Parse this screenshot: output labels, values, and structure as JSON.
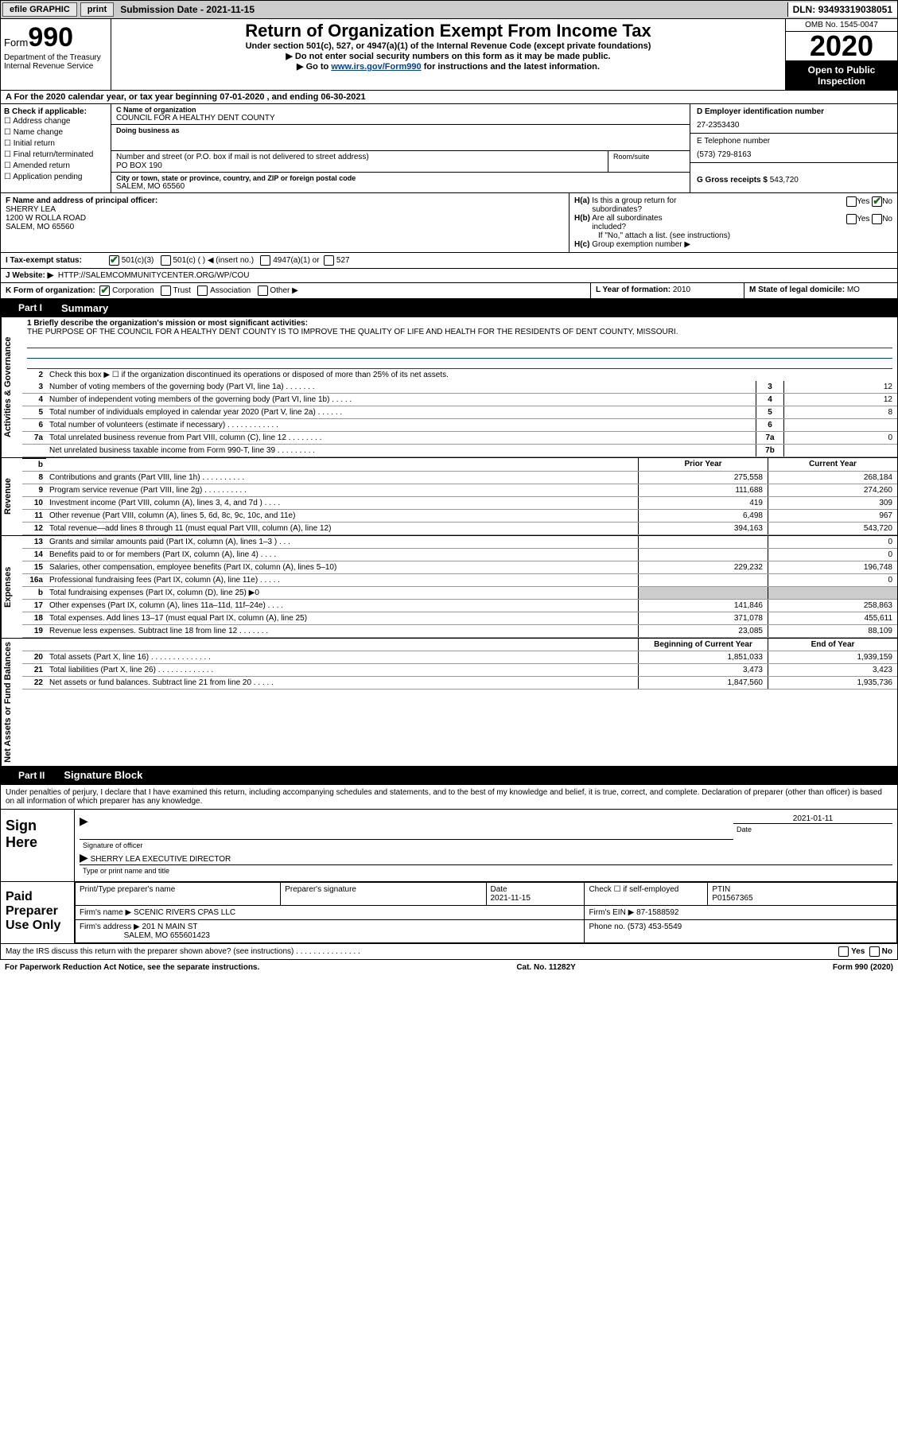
{
  "topbar": {
    "efile": "efile GRAPHIC",
    "print": "print",
    "sub_date_label": "Submission Date - ",
    "sub_date": "2021-11-15",
    "dln_label": "DLN: ",
    "dln": "93493319038051"
  },
  "header": {
    "form_label": "Form",
    "form_num": "990",
    "dept": "Department of the Treasury",
    "irs": "Internal Revenue Service",
    "title": "Return of Organization Exempt From Income Tax",
    "subtitle": "Under section 501(c), 527, or 4947(a)(1) of the Internal Revenue Code (except private foundations)",
    "note1": "▶ Do not enter social security numbers on this form as it may be made public.",
    "note2_pre": "▶ Go to ",
    "note2_link": "www.irs.gov/Form990",
    "note2_post": " for instructions and the latest information.",
    "omb": "OMB No. 1545-0047",
    "year": "2020",
    "open": "Open to Public Inspection"
  },
  "lineA": {
    "pre": "A For the 2020 calendar year, or tax year beginning ",
    "begin": "07-01-2020",
    "mid": " , and ending ",
    "end": "06-30-2021"
  },
  "colB": {
    "hdr": "B Check if applicable:",
    "opts": [
      "Address change",
      "Name change",
      "Initial return",
      "Final return/terminated",
      "Amended return",
      "Application pending"
    ]
  },
  "org": {
    "name_lbl": "C Name of organization",
    "name": "COUNCIL FOR A HEALTHY DENT COUNTY",
    "dba_lbl": "Doing business as",
    "dba": "",
    "street_lbl": "Number and street (or P.O. box if mail is not delivered to street address)",
    "street": "PO BOX 190",
    "room_lbl": "Room/suite",
    "city_lbl": "City or town, state or province, country, and ZIP or foreign postal code",
    "city": "SALEM, MO  65560"
  },
  "right": {
    "ein_lbl": "D Employer identification number",
    "ein": "27-2353430",
    "tel_lbl": "E Telephone number",
    "tel": "(573) 729-8163",
    "gross_lbl": "G Gross receipts $ ",
    "gross": "543,720"
  },
  "f": {
    "lbl": "F Name and address of principal officer:",
    "name": "SHERRY LEA",
    "addr1": "1200 W ROLLA ROAD",
    "addr2": "SALEM, MO  65560"
  },
  "h": {
    "a_lbl": "H(a) Is this a group return for subordinates?",
    "b_lbl": "H(b) Are all subordinates included?",
    "b_note": "If \"No,\" attach a list. (see instructions)",
    "c_lbl": "H(c) Group exemption number ▶",
    "yes": "Yes",
    "no": "No"
  },
  "i": {
    "lbl": "I    Tax-exempt status:",
    "o1": "501(c)(3)",
    "o2": "501(c) (  ) ◀ (insert no.)",
    "o3": "4947(a)(1) or",
    "o4": "527"
  },
  "j": {
    "lbl": "J    Website: ▶",
    "val": "HTTP://SALEMCOMMUNITYCENTER.ORG/WP/COU"
  },
  "k": {
    "lbl": "K Form of organization:",
    "o1": "Corporation",
    "o2": "Trust",
    "o3": "Association",
    "o4": "Other ▶"
  },
  "l": {
    "lbl": "L Year of formation: ",
    "val": "2010"
  },
  "m": {
    "lbl": "M State of legal domicile: ",
    "val": "MO"
  },
  "part1": {
    "tab": "Part I",
    "title": "Summary",
    "mission_lbl": "1  Briefly describe the organization's mission or most significant activities:",
    "mission": "THE PURPOSE OF THE COUNCIL FOR A HEALTHY DENT COUNTY IS TO IMPROVE THE QUALITY OF LIFE AND HEALTH FOR THE RESIDENTS OF DENT COUNTY, MISSOURI.",
    "line2": "Check this box ▶ ☐ if the organization discontinued its operations or disposed of more than 25% of its net assets.",
    "sides": {
      "gov": "Activities & Governance",
      "rev": "Revenue",
      "exp": "Expenses",
      "net": "Net Assets or Fund Balances"
    },
    "rows_gov": [
      {
        "n": "3",
        "t": "Number of voting members of the governing body (Part VI, line 1a)   .    .    .    .    .    .    .",
        "bn": "3",
        "v": "12"
      },
      {
        "n": "4",
        "t": "Number of independent voting members of the governing body (Part VI, line 1b)   .    .    .    .    .",
        "bn": "4",
        "v": "12"
      },
      {
        "n": "5",
        "t": "Total number of individuals employed in calendar year 2020 (Part V, line 2a)   .    .    .    .    .    .",
        "bn": "5",
        "v": "8"
      },
      {
        "n": "6",
        "t": "Total number of volunteers (estimate if necessary)   .    .    .    .    .    .    .    .    .    .    .    .",
        "bn": "6",
        "v": ""
      },
      {
        "n": "7a",
        "t": "Total unrelated business revenue from Part VIII, column (C), line 12   .    .    .    .    .    .    .    .",
        "bn": "7a",
        "v": "0"
      },
      {
        "n": "",
        "t": "Net unrelated business taxable income from Form 990-T, line 39   .    .    .    .    .    .    .    .    .",
        "bn": "7b",
        "v": ""
      }
    ],
    "col_prior": "Prior Year",
    "col_curr": "Current Year",
    "rows_rev": [
      {
        "n": "8",
        "t": "Contributions and grants (Part VIII, line 1h)   .    .    .    .    .    .    .    .    .    .",
        "p": "275,558",
        "c": "268,184"
      },
      {
        "n": "9",
        "t": "Program service revenue (Part VIII, line 2g)   .    .    .    .    .    .    .    .    .    .",
        "p": "111,688",
        "c": "274,260"
      },
      {
        "n": "10",
        "t": "Investment income (Part VIII, column (A), lines 3, 4, and 7d )   .    .    .    .",
        "p": "419",
        "c": "309"
      },
      {
        "n": "11",
        "t": "Other revenue (Part VIII, column (A), lines 5, 6d, 8c, 9c, 10c, and 11e)",
        "p": "6,498",
        "c": "967"
      },
      {
        "n": "12",
        "t": "Total revenue—add lines 8 through 11 (must equal Part VIII, column (A), line 12)",
        "p": "394,163",
        "c": "543,720"
      }
    ],
    "rows_exp": [
      {
        "n": "13",
        "t": "Grants and similar amounts paid (Part IX, column (A), lines 1–3 )   .    .    .",
        "p": "",
        "c": "0"
      },
      {
        "n": "14",
        "t": "Benefits paid to or for members (Part IX, column (A), line 4)   .    .    .    .",
        "p": "",
        "c": "0"
      },
      {
        "n": "15",
        "t": "Salaries, other compensation, employee benefits (Part IX, column (A), lines 5–10)",
        "p": "229,232",
        "c": "196,748"
      },
      {
        "n": "16a",
        "t": "Professional fundraising fees (Part IX, column (A), line 11e)   .    .    .    .    .",
        "p": "",
        "c": "0"
      },
      {
        "n": "b",
        "t": "Total fundraising expenses (Part IX, column (D), line 25) ▶0",
        "p": "__shade__",
        "c": "__shade__"
      },
      {
        "n": "17",
        "t": "Other expenses (Part IX, column (A), lines 11a–11d, 11f–24e)   .    .    .    .",
        "p": "141,846",
        "c": "258,863"
      },
      {
        "n": "18",
        "t": "Total expenses. Add lines 13–17 (must equal Part IX, column (A), line 25)",
        "p": "371,078",
        "c": "455,611"
      },
      {
        "n": "19",
        "t": "Revenue less expenses. Subtract line 18 from line 12   .    .    .    .    .    .    .",
        "p": "23,085",
        "c": "88,109"
      }
    ],
    "col_begin": "Beginning of Current Year",
    "col_end": "End of Year",
    "rows_net": [
      {
        "n": "20",
        "t": "Total assets (Part X, line 16)   .    .    .    .    .    .    .    .    .    .    .    .    .    .",
        "p": "1,851,033",
        "c": "1,939,159"
      },
      {
        "n": "21",
        "t": "Total liabilities (Part X, line 26)   .    .    .    .    .    .    .    .    .    .    .    .    .",
        "p": "3,473",
        "c": "3,423"
      },
      {
        "n": "22",
        "t": "Net assets or fund balances. Subtract line 21 from line 20   .    .    .    .    .",
        "p": "1,847,560",
        "c": "1,935,736"
      }
    ]
  },
  "part2": {
    "tab": "Part II",
    "title": "Signature Block",
    "decl": "Under penalties of perjury, I declare that I have examined this return, including accompanying schedules and statements, and to the best of my knowledge and belief, it is true, correct, and complete. Declaration of preparer (other than officer) is based on all information of which preparer has any knowledge.",
    "sign_here": "Sign Here",
    "sig_officer": "Signature of officer",
    "date_lbl": "Date",
    "sig_date": "2021-01-11",
    "officer_name": "SHERRY LEA  EXECUTIVE DIRECTOR",
    "type_name": "Type or print name and title",
    "paid_label": "Paid Preparer Use Only",
    "prep_name_lbl": "Print/Type preparer's name",
    "prep_sig_lbl": "Preparer's signature",
    "prep_date_lbl": "Date",
    "prep_date": "2021-11-15",
    "check_self": "Check ☐ if self-employed",
    "ptin_lbl": "PTIN",
    "ptin": "P01567365",
    "firm_name_lbl": "Firm's name    ▶ ",
    "firm_name": "SCENIC RIVERS CPAS LLC",
    "firm_ein_lbl": "Firm's EIN ▶ ",
    "firm_ein": "87-1588592",
    "firm_addr_lbl": "Firm's address ▶ ",
    "firm_addr": "201 N MAIN ST",
    "firm_addr2": "SALEM, MO  655601423",
    "phone_lbl": "Phone no. ",
    "phone": "(573) 453-5549",
    "discuss": "May the IRS discuss this return with the preparer shown above? (see instructions)   .    .    .    .    .    .    .    .    .    .    .    .    .    .    ."
  },
  "footer": {
    "left": "For Paperwork Reduction Act Notice, see the separate instructions.",
    "mid": "Cat. No. 11282Y",
    "right_pre": "Form ",
    "right_bold": "990",
    "right_post": " (2020)"
  }
}
